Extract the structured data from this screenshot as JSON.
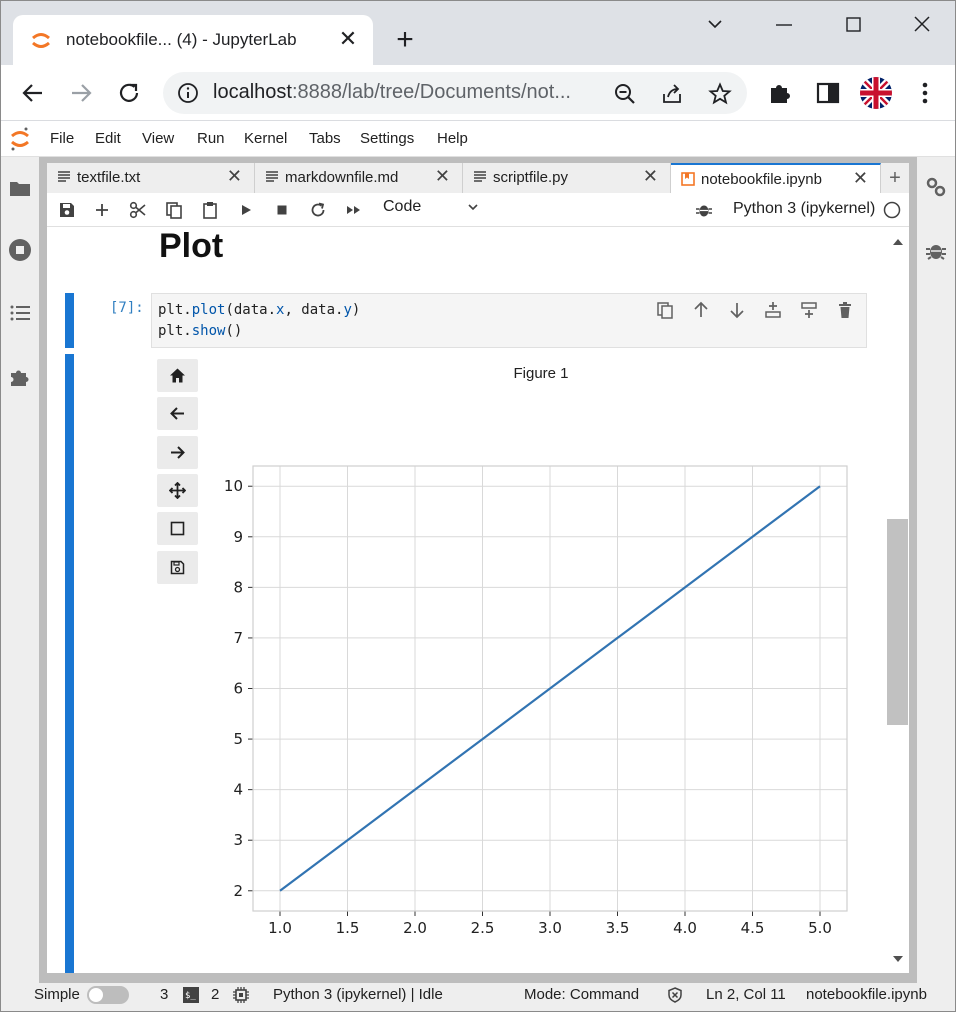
{
  "browser": {
    "tab_title": "notebookfile... (4) - JupyterLab",
    "tab_close": "✕",
    "new_tab": "+",
    "url_host": "localhost",
    "url_path": ":8888/lab/tree/Documents/not..."
  },
  "menu": [
    "File",
    "Edit",
    "View",
    "Run",
    "Kernel",
    "Tabs",
    "Settings",
    "Help"
  ],
  "doc_tabs": [
    {
      "label": "textfile.txt",
      "active": false
    },
    {
      "label": "markdownfile.md",
      "active": false
    },
    {
      "label": "scriptfile.py",
      "active": false
    },
    {
      "label": "notebookfile.ipynb",
      "active": true
    }
  ],
  "tab_close": "✕",
  "tab_add": "+",
  "toolbar": {
    "cell_type": "Code",
    "kernel": "Python 3 (ipykernel)"
  },
  "notebook": {
    "heading": "Plot",
    "prompt": "[7]:",
    "code_line1_pre": "plt.",
    "code_line1_fn": "plot",
    "code_line1_mid": "(data.",
    "code_line1_x": "x",
    "code_line1_sep": ", data.",
    "code_line1_y": "y",
    "code_line1_end": ")",
    "code_line2_pre": "plt.",
    "code_line2_fn": "show",
    "code_line2_end": "()"
  },
  "figure": {
    "title": "Figure 1"
  },
  "chart_data": {
    "type": "line",
    "x": [
      1.0,
      1.5,
      2.0,
      2.5,
      3.0,
      3.5,
      4.0,
      4.5,
      5.0
    ],
    "y": [
      2,
      3,
      4,
      5,
      6,
      7,
      8,
      9,
      10
    ],
    "xticks": [
      "1.0",
      "1.5",
      "2.0",
      "2.5",
      "3.0",
      "3.5",
      "4.0",
      "4.5",
      "5.0"
    ],
    "yticks": [
      "2",
      "3",
      "4",
      "5",
      "6",
      "7",
      "8",
      "9",
      "10"
    ],
    "xlim": [
      0.8,
      5.2
    ],
    "ylim": [
      1.6,
      10.4
    ],
    "grid": true,
    "line_color": "#3274b2",
    "title": "",
    "xlabel": "",
    "ylabel": ""
  },
  "status": {
    "mode_label": "Simple",
    "terminals": "3",
    "kernels": "2",
    "kernel_status": "Python 3 (ipykernel) | Idle",
    "mode": "Mode: Command",
    "position": "Ln 2, Col 11",
    "file": "notebookfile.ipynb"
  },
  "colors": {
    "accent": "#1976d2",
    "jupyter_orange": "#f37726"
  }
}
